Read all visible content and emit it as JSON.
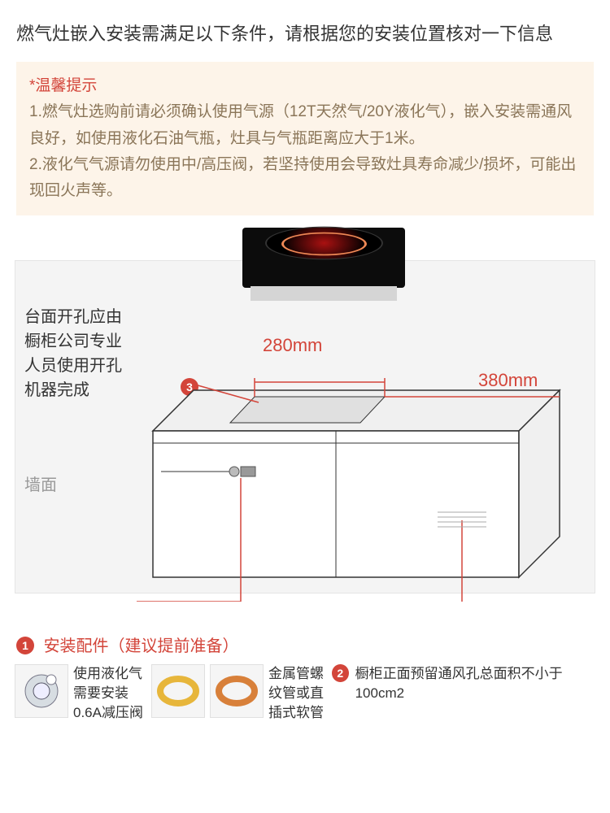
{
  "header": "燃气灶嵌入安装需满足以下条件，请根据您的安装位置核对一下信息",
  "tip": {
    "title": "*温馨提示",
    "line1": "1.燃气灶选购前请必须确认使用气源（12T天然气/20Y液化气），嵌入安装需通风良好，如使用液化石油气瓶，灶具与气瓶距离应大于1米。",
    "line2": "2.液化气气源请勿使用中/高压阀，若坚持使用会导致灶具寿命减少/损坏，可能出现回火声等。"
  },
  "diagram": {
    "note_left": "台面开孔应由\n橱柜公司专业\n人员使用开孔\n机器完成",
    "wall_label": "墙面",
    "dim_width": "280mm",
    "dim_depth": "380mm",
    "badge3": "3",
    "colors": {
      "red": "#d3453a",
      "bg_panel": "#f4f4f4",
      "tip_bg": "#fdf4e9"
    }
  },
  "section": {
    "badge1": "1",
    "title": "安装配件（建议提前准备）"
  },
  "items": {
    "regulator": "使用液化气\n需要安装\n0.6A减压阀",
    "hose": "金属管螺\n纹管或直\n插式软管",
    "vent_badge": "2",
    "vent": "橱柜正面预留\n通风孔总面积\n不小于100cm²"
  }
}
